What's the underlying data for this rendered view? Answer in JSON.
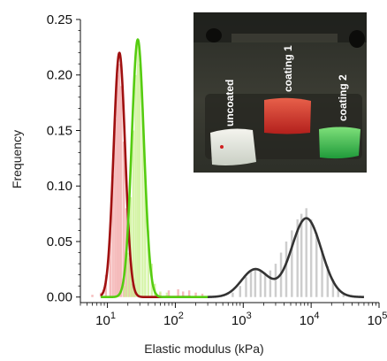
{
  "chart_data": {
    "type": "histogram",
    "xlabel": "Elastic modulus (kPa)",
    "ylabel": "Frequency",
    "x_scale": "log",
    "xlim": [
      4,
      100000
    ],
    "ylim": [
      -0.005,
      0.25
    ],
    "x_ticks": [
      {
        "value": 10,
        "base": "10",
        "exp": "1"
      },
      {
        "value": 100,
        "base": "10",
        "exp": "2"
      },
      {
        "value": 1000,
        "base": "10",
        "exp": "3"
      },
      {
        "value": 10000,
        "base": "10",
        "exp": "4"
      },
      {
        "value": 100000,
        "base": "10",
        "exp": "5"
      }
    ],
    "y_ticks": [
      "0.00",
      "0.05",
      "0.10",
      "0.15",
      "0.20",
      "0.25"
    ],
    "y_tick_values": [
      0,
      0.05,
      0.1,
      0.15,
      0.2,
      0.25
    ],
    "colors": {
      "uncoated_fit": "#333333",
      "uncoated_hist": "#c8c8c8",
      "coating1_fit": "#a01010",
      "coating1_hist": "#f2a6a6",
      "coating2_fit": "#55cc10",
      "coating2_hist": "#c8f08c"
    },
    "series": [
      {
        "id": "coating1",
        "fit": {
          "type": "gaussian_log",
          "amp": 0.22,
          "center": 15,
          "sigma_log10": 0.085
        },
        "hist": [
          [
            6,
            0.002
          ],
          [
            8,
            0.004
          ],
          [
            9.5,
            0.02
          ],
          [
            11,
            0.06
          ],
          [
            12,
            0.11
          ],
          [
            13,
            0.16
          ],
          [
            14,
            0.2
          ],
          [
            15,
            0.21
          ],
          [
            16,
            0.19
          ],
          [
            17.5,
            0.14
          ],
          [
            19,
            0.08
          ],
          [
            21,
            0.035
          ],
          [
            23,
            0.012
          ],
          [
            25,
            0.005
          ],
          [
            60,
            0.004
          ],
          [
            80,
            0.006
          ],
          [
            110,
            0.007
          ],
          [
            130,
            0.005
          ],
          [
            160,
            0.006
          ],
          [
            200,
            0.004
          ],
          [
            250,
            0.003
          ]
        ]
      },
      {
        "id": "coating2",
        "fit": {
          "type": "gaussian_log",
          "amp": 0.232,
          "center": 28,
          "sigma_log10": 0.09
        },
        "hist": [
          [
            18,
            0.01
          ],
          [
            20,
            0.04
          ],
          [
            22,
            0.09
          ],
          [
            24,
            0.15
          ],
          [
            26,
            0.2
          ],
          [
            28,
            0.23
          ],
          [
            30,
            0.21
          ],
          [
            33,
            0.17
          ],
          [
            36,
            0.11
          ],
          [
            40,
            0.06
          ],
          [
            45,
            0.03
          ],
          [
            50,
            0.012
          ],
          [
            60,
            0.005
          ],
          [
            75,
            0.004
          ]
        ]
      },
      {
        "id": "uncoated",
        "fit": {
          "type": "double_gaussian_log",
          "components": [
            {
              "amp": 0.025,
              "center": 1500,
              "sigma_log10": 0.2
            },
            {
              "amp": 0.071,
              "center": 8500,
              "sigma_log10": 0.22
            }
          ]
        },
        "hist": [
          [
            700,
            0.004
          ],
          [
            900,
            0.01
          ],
          [
            1100,
            0.018
          ],
          [
            1300,
            0.024
          ],
          [
            1500,
            0.026
          ],
          [
            1800,
            0.024
          ],
          [
            2100,
            0.022
          ],
          [
            2500,
            0.024
          ],
          [
            3000,
            0.03
          ],
          [
            3600,
            0.04
          ],
          [
            4300,
            0.05
          ],
          [
            5200,
            0.06
          ],
          [
            6300,
            0.07
          ],
          [
            7200,
            0.075
          ],
          [
            8500,
            0.08
          ],
          [
            10000,
            0.07
          ],
          [
            12000,
            0.058
          ],
          [
            14500,
            0.042
          ],
          [
            17500,
            0.028
          ],
          [
            21000,
            0.016
          ],
          [
            25000,
            0.008
          ],
          [
            30000,
            0.004
          ]
        ]
      }
    ],
    "inset_labels": [
      "uncoated",
      "coating 1",
      "coating 2"
    ]
  }
}
